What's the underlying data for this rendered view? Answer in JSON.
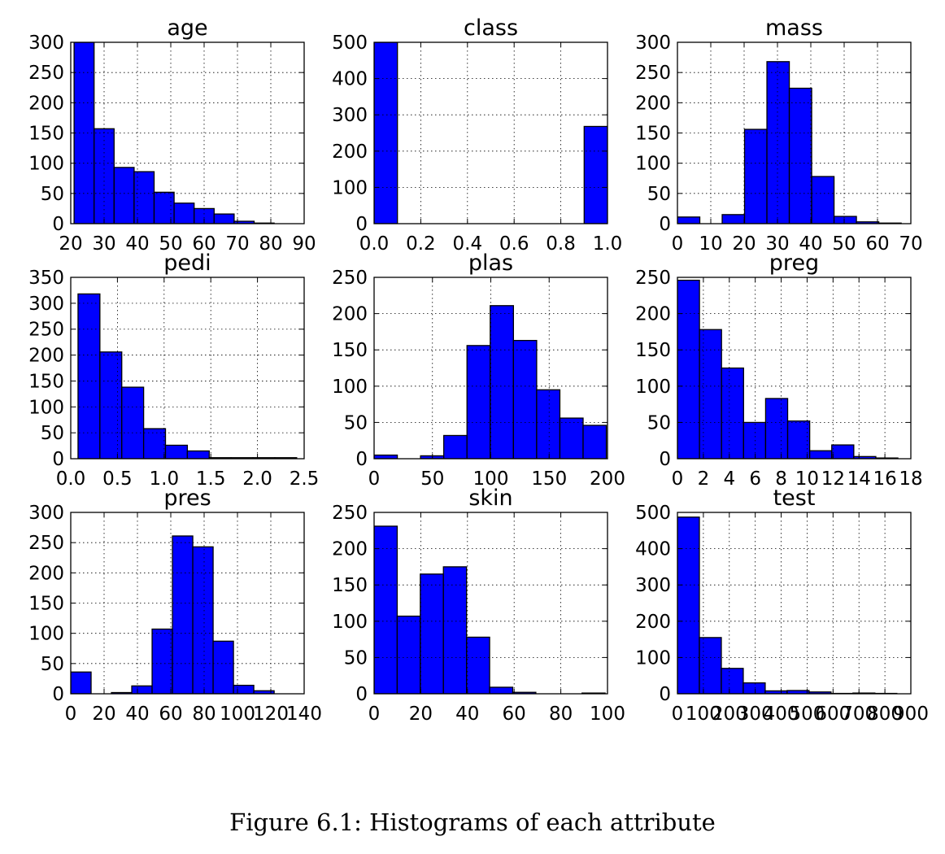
{
  "chart_data": [
    {
      "type": "bar",
      "title": "age",
      "bin_edges": [
        21,
        27,
        33,
        39,
        45,
        51,
        57,
        63,
        69,
        75,
        81
      ],
      "values": [
        300,
        157,
        93,
        86,
        52,
        34,
        25,
        16,
        4,
        1
      ],
      "xlim": [
        20,
        90
      ],
      "ylim": [
        0,
        300
      ],
      "xticks": [
        "20",
        "30",
        "40",
        "50",
        "60",
        "70",
        "80",
        "90"
      ],
      "yticks": [
        "0",
        "50",
        "100",
        "150",
        "200",
        "250",
        "300"
      ],
      "color": "#0000ff",
      "grid": true
    },
    {
      "type": "bar",
      "title": "class",
      "bin_edges": [
        0.0,
        0.1,
        0.2,
        0.3,
        0.4,
        0.5,
        0.6,
        0.7,
        0.8,
        0.9,
        1.0
      ],
      "values": [
        500,
        0,
        0,
        0,
        0,
        0,
        0,
        0,
        0,
        268
      ],
      "xlim": [
        0.0,
        1.0
      ],
      "ylim": [
        0,
        500
      ],
      "xticks": [
        "0.0",
        "0.2",
        "0.4",
        "0.6",
        "0.8",
        "1.0"
      ],
      "yticks": [
        "0",
        "100",
        "200",
        "300",
        "400",
        "500"
      ],
      "color": "#0000ff",
      "grid": true
    },
    {
      "type": "bar",
      "title": "mass",
      "bin_edges": [
        0,
        6.71,
        13.42,
        20.13,
        26.84,
        33.55,
        40.26,
        46.97,
        53.68,
        60.39,
        67.1
      ],
      "values": [
        11,
        0,
        15,
        156,
        268,
        224,
        78,
        12,
        3,
        1
      ],
      "xlim": [
        0,
        70
      ],
      "ylim": [
        0,
        300
      ],
      "xticks": [
        "0",
        "10",
        "20",
        "30",
        "40",
        "50",
        "60",
        "70"
      ],
      "yticks": [
        "0",
        "50",
        "100",
        "150",
        "200",
        "250",
        "300"
      ],
      "color": "#0000ff",
      "grid": true
    },
    {
      "type": "bar",
      "title": "pedi",
      "bin_edges": [
        0.078,
        0.3122,
        0.5464,
        0.7806,
        1.0148,
        1.249,
        1.4832,
        1.7174,
        1.9516,
        2.1858,
        2.42
      ],
      "values": [
        318,
        206,
        138,
        58,
        26,
        15,
        2,
        2,
        2,
        2
      ],
      "xlim": [
        0.0,
        2.5
      ],
      "ylim": [
        0,
        350
      ],
      "xticks": [
        "0.0",
        "0.5",
        "1.0",
        "1.5",
        "2.0",
        "2.5"
      ],
      "yticks": [
        "0",
        "50",
        "100",
        "150",
        "200",
        "250",
        "300",
        "350"
      ],
      "color": "#0000ff",
      "grid": true
    },
    {
      "type": "bar",
      "title": "plas",
      "bin_edges": [
        0,
        19.9,
        39.8,
        59.7,
        79.6,
        99.5,
        119.4,
        139.3,
        159.2,
        179.1,
        199
      ],
      "values": [
        5,
        0,
        4,
        32,
        156,
        211,
        163,
        95,
        56,
        46
      ],
      "xlim": [
        0,
        200
      ],
      "ylim": [
        0,
        250
      ],
      "xticks": [
        "0",
        "50",
        "100",
        "150",
        "200"
      ],
      "yticks": [
        "0",
        "50",
        "100",
        "150",
        "200",
        "250"
      ],
      "color": "#0000ff",
      "grid": true
    },
    {
      "type": "bar",
      "title": "preg",
      "bin_edges": [
        0,
        1.7,
        3.4,
        5.1,
        6.8,
        8.5,
        10.2,
        11.9,
        13.6,
        15.3,
        17
      ],
      "values": [
        246,
        178,
        125,
        50,
        83,
        52,
        11,
        19,
        3,
        1
      ],
      "xlim": [
        0,
        18
      ],
      "ylim": [
        0,
        250
      ],
      "xticks": [
        "0",
        "2",
        "4",
        "6",
        "8",
        "10",
        "12",
        "14",
        "16",
        "18"
      ],
      "yticks": [
        "0",
        "50",
        "100",
        "150",
        "200",
        "250"
      ],
      "color": "#0000ff",
      "grid": true
    },
    {
      "type": "bar",
      "title": "pres",
      "bin_edges": [
        0,
        12.2,
        24.4,
        36.6,
        48.8,
        61,
        73.2,
        85.4,
        97.6,
        109.8,
        122
      ],
      "values": [
        36,
        0,
        2,
        13,
        107,
        261,
        243,
        87,
        14,
        5
      ],
      "xlim": [
        0,
        140
      ],
      "ylim": [
        0,
        300
      ],
      "xticks": [
        "0",
        "20",
        "40",
        "60",
        "80",
        "100",
        "120",
        "140"
      ],
      "yticks": [
        "0",
        "50",
        "100",
        "150",
        "200",
        "250",
        "300"
      ],
      "color": "#0000ff",
      "grid": true
    },
    {
      "type": "bar",
      "title": "skin",
      "bin_edges": [
        0,
        9.9,
        19.8,
        29.7,
        39.6,
        49.5,
        59.4,
        69.3,
        79.2,
        89.1,
        99
      ],
      "values": [
        231,
        107,
        165,
        175,
        78,
        9,
        2,
        0,
        0,
        1
      ],
      "xlim": [
        0,
        100
      ],
      "ylim": [
        0,
        250
      ],
      "xticks": [
        "0",
        "20",
        "40",
        "60",
        "80",
        "100"
      ],
      "yticks": [
        "0",
        "50",
        "100",
        "150",
        "200",
        "250"
      ],
      "color": "#0000ff",
      "grid": true
    },
    {
      "type": "bar",
      "title": "test",
      "bin_edges": [
        0,
        84.6,
        169.2,
        253.8,
        338.4,
        423,
        507.6,
        592.2,
        676.8,
        761.4,
        846
      ],
      "values": [
        487,
        155,
        70,
        30,
        8,
        9,
        5,
        1,
        2,
        1
      ],
      "xlim": [
        0,
        900
      ],
      "ylim": [
        0,
        500
      ],
      "xticks": [
        "0",
        "100",
        "200",
        "300",
        "400",
        "500",
        "600",
        "700",
        "800",
        "900"
      ],
      "yticks": [
        "0",
        "100",
        "200",
        "300",
        "400",
        "500"
      ],
      "color": "#0000ff",
      "grid": true
    }
  ],
  "caption": "Figure 6.1: Histograms of each attribute"
}
